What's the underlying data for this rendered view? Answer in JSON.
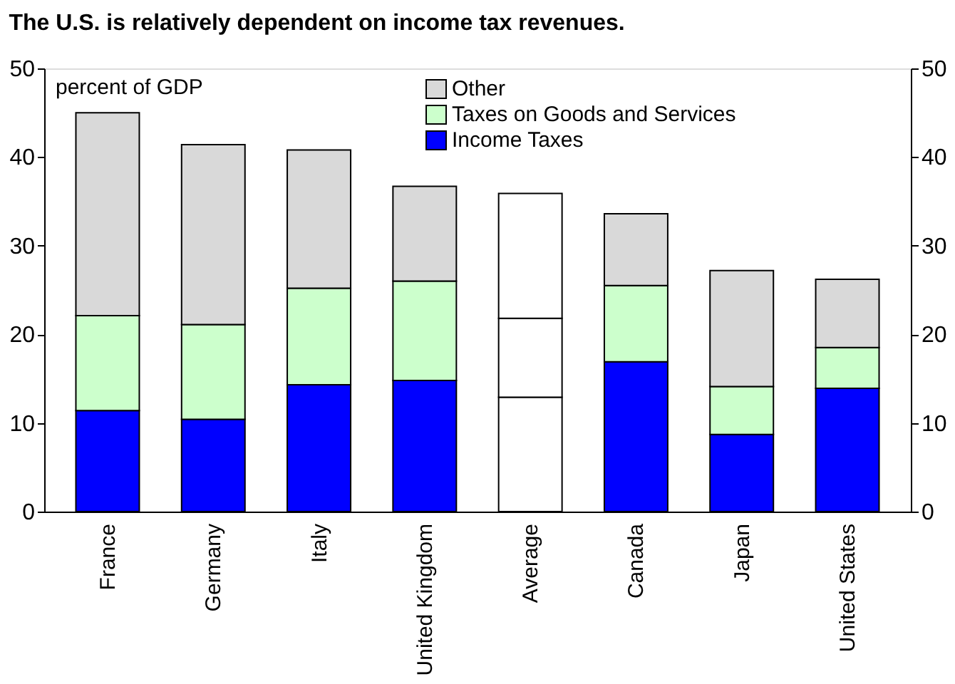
{
  "chart_data": {
    "type": "bar",
    "title": "The U.S. is relatively dependent on income tax revenues.",
    "categories": [
      "France",
      "Germany",
      "Italy",
      "United Kingdom",
      "Average",
      "Canada",
      "Japan",
      "United States"
    ],
    "stacked": true,
    "series": [
      {
        "name": "Income Taxes",
        "color": "#0000ff",
        "colors": [
          "#0000ff",
          "#0000ff",
          "#0000ff",
          "#0000ff",
          "#ffffff",
          "#0000ff",
          "#0000ff",
          "#0000ff"
        ],
        "values": [
          11.4,
          10.4,
          14.3,
          14.8,
          12.9,
          16.9,
          8.7,
          13.9
        ]
      },
      {
        "name": "Taxes on Goods and Services",
        "color": "#ccffcc",
        "colors": [
          "#ccffcc",
          "#ccffcc",
          "#ccffcc",
          "#ccffcc",
          "#ffffff",
          "#ccffcc",
          "#ccffcc",
          "#ccffcc"
        ],
        "values": [
          10.7,
          10.7,
          10.9,
          11.2,
          8.9,
          8.6,
          5.4,
          4.6
        ]
      },
      {
        "name": "Other",
        "color": "#d9d9d9",
        "colors": [
          "#d9d9d9",
          "#d9d9d9",
          "#d9d9d9",
          "#d9d9d9",
          "#ffffff",
          "#d9d9d9",
          "#d9d9d9",
          "#d9d9d9"
        ],
        "values": [
          22.9,
          20.3,
          15.6,
          10.7,
          14.1,
          8.1,
          13.1,
          7.7
        ]
      }
    ],
    "ylim": [
      0,
      50
    ],
    "yticks": [
      0,
      10,
      20,
      30,
      40,
      50
    ],
    "y2lim": [
      0,
      50
    ],
    "y2ticks": [
      0,
      10,
      20,
      30,
      40,
      50
    ],
    "annotations": [
      "percent of GDP"
    ],
    "legend": "top",
    "grid": false
  }
}
